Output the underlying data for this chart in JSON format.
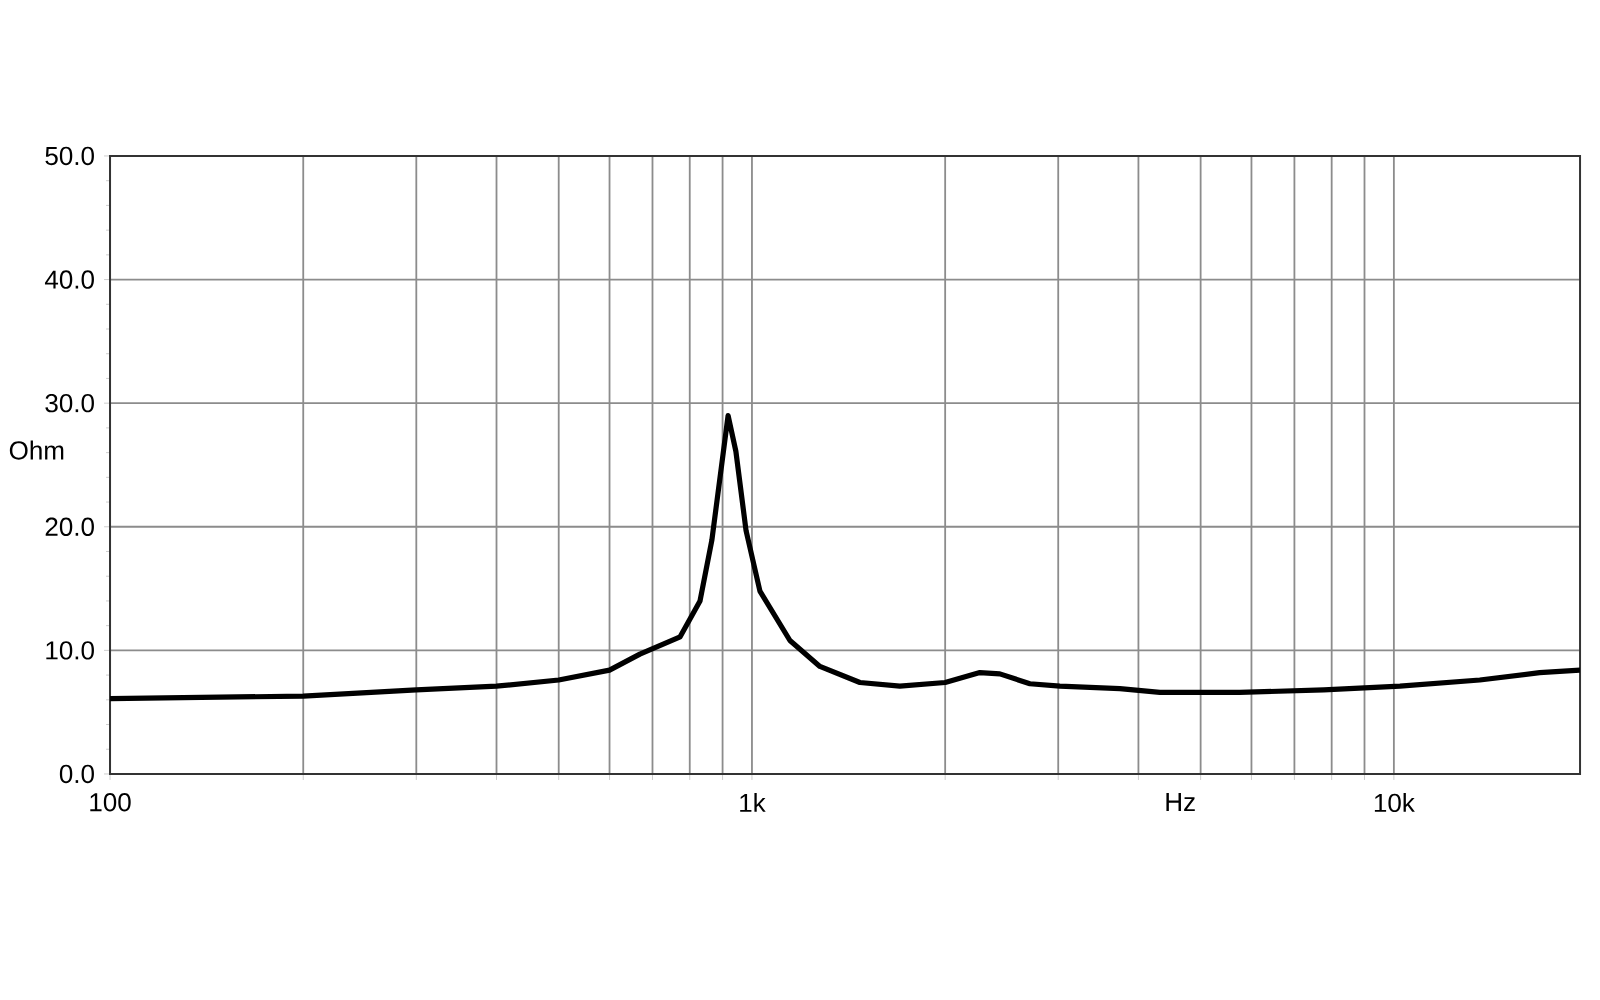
{
  "chart_data": {
    "type": "line",
    "xlabel": "Hz",
    "ylabel": "Ohm",
    "log": "x",
    "xlim": [
      100,
      19500
    ],
    "ylim": [
      0,
      50
    ],
    "xticks": [
      {
        "value": 100,
        "label": "100"
      },
      {
        "value": 200,
        "label": null
      },
      {
        "value": 300,
        "label": null
      },
      {
        "value": 400,
        "label": null
      },
      {
        "value": 500,
        "label": null
      },
      {
        "value": 600,
        "label": null
      },
      {
        "value": 700,
        "label": null
      },
      {
        "value": 800,
        "label": null
      },
      {
        "value": 900,
        "label": null
      },
      {
        "value": 1000,
        "label": "1k"
      },
      {
        "value": 2000,
        "label": null
      },
      {
        "value": 3000,
        "label": null
      },
      {
        "value": 4000,
        "label": null
      },
      {
        "value": 5000,
        "label": null
      },
      {
        "value": 6000,
        "label": null
      },
      {
        "value": 7000,
        "label": null
      },
      {
        "value": 8000,
        "label": null
      },
      {
        "value": 9000,
        "label": null
      },
      {
        "value": 10000,
        "label": "10k"
      }
    ],
    "yticks": [
      {
        "value": 0,
        "label": "0.0"
      },
      {
        "value": 10,
        "label": "10.0"
      },
      {
        "value": 20,
        "label": "20.0"
      },
      {
        "value": 30,
        "label": "30.0"
      },
      {
        "value": 40,
        "label": "40.0"
      },
      {
        "value": 50,
        "label": "50.0"
      }
    ],
    "grid": true,
    "marker": "none",
    "line_style": "solid",
    "series": [
      {
        "color": "#000000",
        "x": [
          100,
          200,
          300,
          400,
          500,
          600,
          669,
          773,
          830,
          866,
          918,
          944,
          979,
          1029,
          1146,
          1276,
          1473,
          1700,
          2000,
          2265,
          2433,
          2710,
          3018,
          3743,
          4320,
          5754,
          7780,
          10220,
          13610,
          16870,
          19500
        ],
        "values": [
          6.1,
          6.3,
          6.8,
          7.1,
          7.6,
          8.4,
          9.7,
          11.1,
          14,
          18.9,
          29.0,
          26.1,
          19.7,
          14.8,
          10.8,
          8.7,
          7.4,
          7.1,
          7.4,
          8.2,
          8.1,
          7.3,
          7.1,
          6.9,
          6.6,
          6.6,
          6.8,
          7.1,
          7.6,
          8.2,
          8.4
        ]
      }
    ]
  }
}
